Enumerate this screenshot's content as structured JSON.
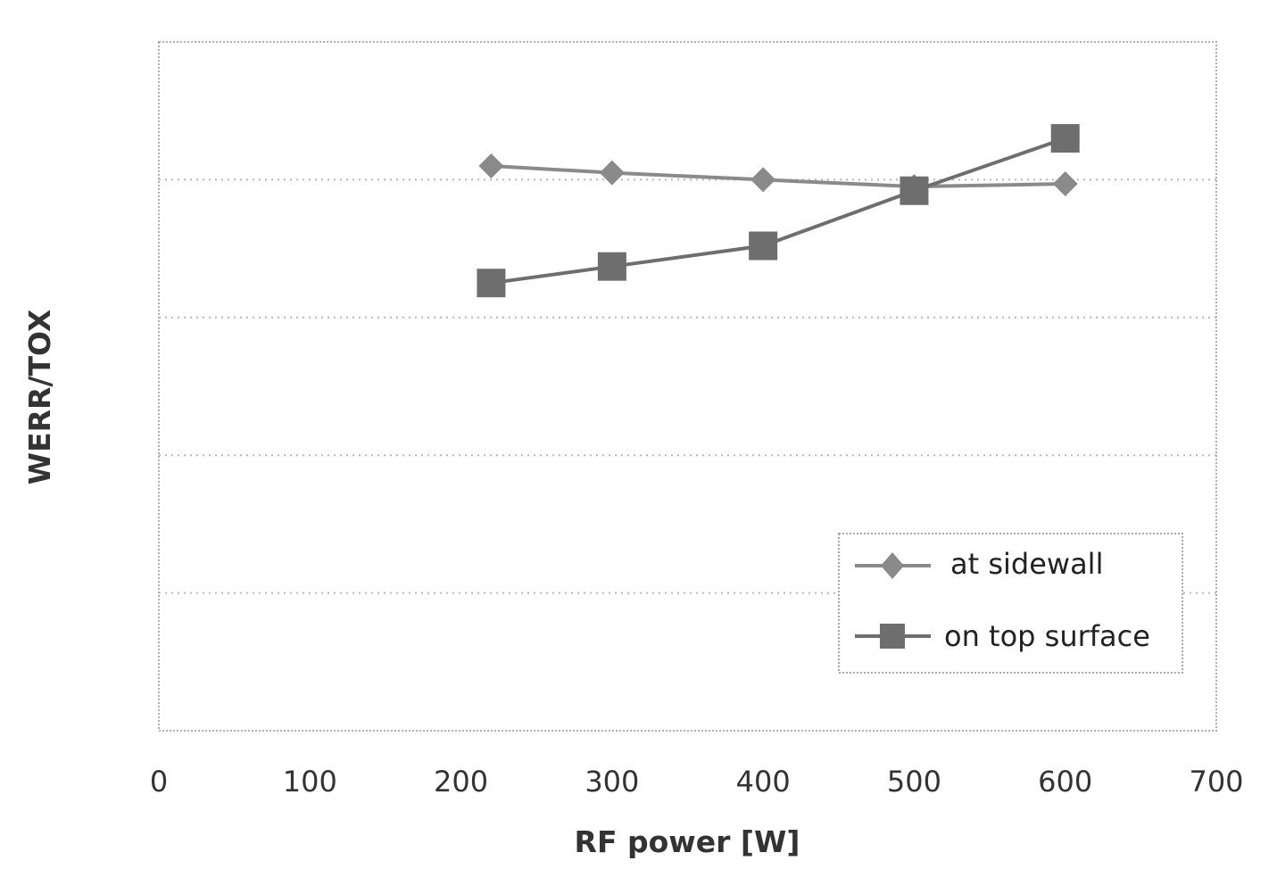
{
  "chart_data": {
    "type": "line",
    "xlabel": "RF power [W]",
    "ylabel": "WERR/TOX",
    "xlim": [
      0,
      700
    ],
    "ylim": [
      0,
      5
    ],
    "xticks": [
      0,
      100,
      200,
      300,
      400,
      500,
      600,
      700
    ],
    "xtick_labels": [
      "0",
      "100",
      "200",
      "300",
      "400",
      "500",
      "600",
      "700"
    ],
    "y_tick_labels_shown": false,
    "grid": "horizontal-dotted",
    "legend_position": "bottom-right",
    "series": [
      {
        "name": "at sidewall",
        "marker": "diamond",
        "color": "#8a8a8a",
        "x": [
          220,
          300,
          400,
          500,
          600
        ],
        "y": [
          4.1,
          4.05,
          4.0,
          3.95,
          3.97
        ]
      },
      {
        "name": "on top surface",
        "marker": "square",
        "color": "#6e6e6e",
        "x": [
          220,
          300,
          400,
          500,
          600
        ],
        "y": [
          3.25,
          3.37,
          3.52,
          3.92,
          4.3
        ]
      }
    ]
  }
}
